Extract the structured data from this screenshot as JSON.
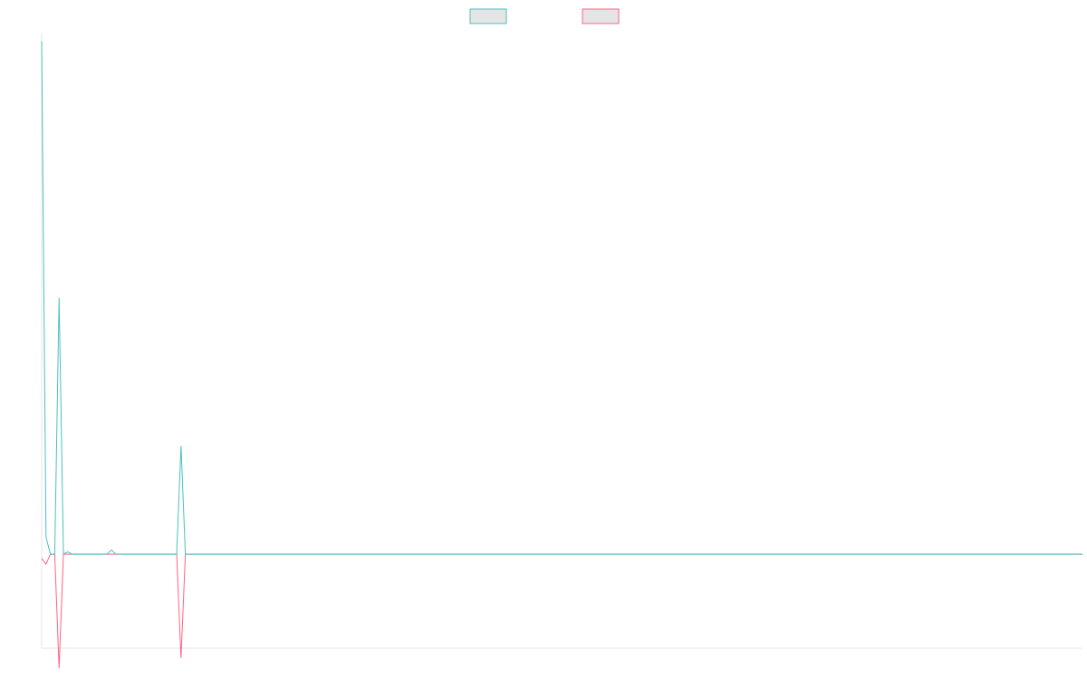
{
  "chart_data": {
    "type": "line",
    "title": "",
    "xlabel": "",
    "ylabel": "",
    "grid": false,
    "legend": {
      "placement": "top-center"
    },
    "ylim": [
      -330,
      1830
    ],
    "xlim": [
      0,
      239
    ],
    "x": [
      0,
      1,
      2,
      3,
      4,
      5,
      6,
      7,
      8,
      9,
      10,
      11,
      12,
      13,
      14,
      15,
      16,
      17,
      18,
      19,
      20,
      21,
      22,
      23,
      24,
      25,
      26,
      27,
      28,
      29,
      30,
      31,
      32,
      33,
      34,
      35,
      36,
      37,
      38,
      39,
      40,
      239
    ],
    "series": [
      {
        "name": "",
        "color": "#4bc0c0",
        "values": [
          1800,
          60,
          0,
          0,
          900,
          0,
          8,
          0,
          0,
          0,
          0,
          0,
          0,
          0,
          0,
          0,
          15,
          0,
          0,
          0,
          0,
          0,
          0,
          0,
          0,
          0,
          0,
          0,
          0,
          0,
          0,
          0,
          380,
          0,
          0,
          0,
          0,
          0,
          0,
          0,
          0,
          0
        ]
      },
      {
        "name": "",
        "color": "#ff6384",
        "values": [
          -15,
          -35,
          0,
          0,
          -400,
          0,
          0,
          0,
          0,
          0,
          0,
          0,
          0,
          0,
          0,
          0,
          0,
          0,
          0,
          0,
          0,
          0,
          0,
          0,
          0,
          0,
          0,
          0,
          0,
          0,
          0,
          0,
          -365,
          0,
          0,
          0,
          0,
          0,
          0,
          0,
          0,
          0
        ]
      }
    ]
  }
}
